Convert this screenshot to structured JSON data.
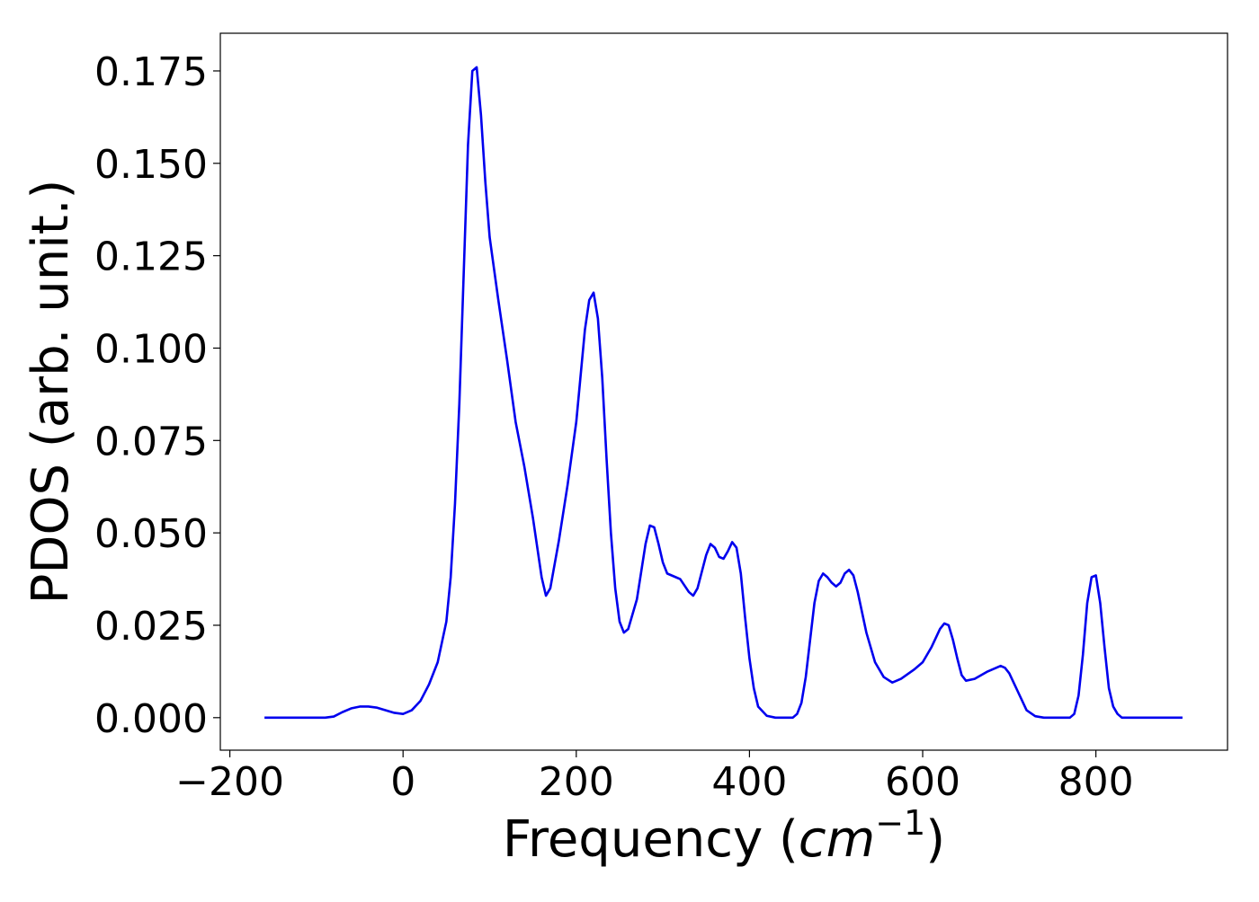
{
  "chart_data": {
    "type": "line",
    "xlabel": [
      "Frequency (",
      "cm",
      "−1",
      ")"
    ],
    "ylabel": "PDOS (arb. unit.)",
    "x": [
      -160,
      -150,
      -140,
      -130,
      -120,
      -110,
      -100,
      -90,
      -80,
      -70,
      -60,
      -50,
      -40,
      -30,
      -20,
      -10,
      0,
      10,
      20,
      30,
      40,
      50,
      55,
      60,
      65,
      70,
      75,
      80,
      85,
      90,
      95,
      100,
      110,
      120,
      130,
      140,
      150,
      160,
      165,
      170,
      180,
      190,
      200,
      210,
      215,
      220,
      225,
      230,
      235,
      240,
      245,
      250,
      255,
      260,
      270,
      280,
      285,
      290,
      295,
      300,
      305,
      315,
      320,
      330,
      335,
      340,
      350,
      355,
      360,
      365,
      370,
      375,
      380,
      385,
      390,
      395,
      400,
      405,
      410,
      420,
      430,
      440,
      450,
      455,
      460,
      465,
      470,
      475,
      480,
      485,
      490,
      495,
      500,
      505,
      510,
      515,
      520,
      525,
      535,
      545,
      555,
      565,
      575,
      590,
      600,
      610,
      620,
      625,
      630,
      635,
      640,
      645,
      650,
      660,
      675,
      690,
      695,
      700,
      710,
      720,
      730,
      740,
      750,
      760,
      770,
      775,
      780,
      785,
      790,
      795,
      800,
      805,
      810,
      815,
      820,
      825,
      830,
      840,
      860,
      880,
      900
    ],
    "series": [
      {
        "name": "PDOS",
        "color": "#0000ee",
        "values": [
          0,
          0,
          0,
          0,
          0,
          0,
          0,
          0,
          0.0003,
          0.0015,
          0.0025,
          0.003,
          0.003,
          0.0027,
          0.002,
          0.0013,
          0.001,
          0.002,
          0.0045,
          0.009,
          0.015,
          0.026,
          0.038,
          0.058,
          0.085,
          0.12,
          0.155,
          0.175,
          0.176,
          0.163,
          0.145,
          0.13,
          0.113,
          0.097,
          0.08,
          0.068,
          0.054,
          0.038,
          0.033,
          0.035,
          0.048,
          0.063,
          0.08,
          0.105,
          0.113,
          0.115,
          0.108,
          0.092,
          0.07,
          0.05,
          0.035,
          0.026,
          0.023,
          0.024,
          0.032,
          0.047,
          0.052,
          0.0515,
          0.047,
          0.042,
          0.039,
          0.038,
          0.0375,
          0.034,
          0.033,
          0.035,
          0.044,
          0.047,
          0.046,
          0.0435,
          0.043,
          0.045,
          0.0475,
          0.046,
          0.039,
          0.027,
          0.016,
          0.008,
          0.003,
          0.0005,
          0,
          0,
          0,
          0.001,
          0.004,
          0.011,
          0.021,
          0.031,
          0.037,
          0.039,
          0.038,
          0.0365,
          0.0355,
          0.0365,
          0.039,
          0.04,
          0.0385,
          0.034,
          0.023,
          0.015,
          0.011,
          0.0095,
          0.0105,
          0.013,
          0.015,
          0.019,
          0.024,
          0.0255,
          0.025,
          0.021,
          0.016,
          0.0115,
          0.01,
          0.0105,
          0.0125,
          0.014,
          0.0135,
          0.012,
          0.007,
          0.002,
          0.0004,
          0,
          0,
          0,
          0,
          0.001,
          0.006,
          0.017,
          0.031,
          0.038,
          0.0385,
          0.031,
          0.019,
          0.008,
          0.003,
          0.001,
          0,
          0,
          0,
          0,
          0
        ]
      }
    ],
    "xlim": [
      -211,
      952
    ],
    "ylim": [
      -0.0088,
      0.1852
    ],
    "xticks": [
      {
        "value": -200,
        "label": "−200"
      },
      0,
      200,
      400,
      600,
      800
    ],
    "yticks": [
      {
        "value": 0,
        "label": "0.000"
      },
      {
        "value": 0.025,
        "label": "0.025"
      },
      {
        "value": 0.05,
        "label": "0.050"
      },
      {
        "value": 0.075,
        "label": "0.075"
      },
      {
        "value": 0.1,
        "label": "0.100"
      },
      {
        "value": 0.125,
        "label": "0.125"
      },
      {
        "value": 0.15,
        "label": "0.150"
      },
      {
        "value": 0.175,
        "label": "0.175"
      }
    ],
    "grid": false
  }
}
